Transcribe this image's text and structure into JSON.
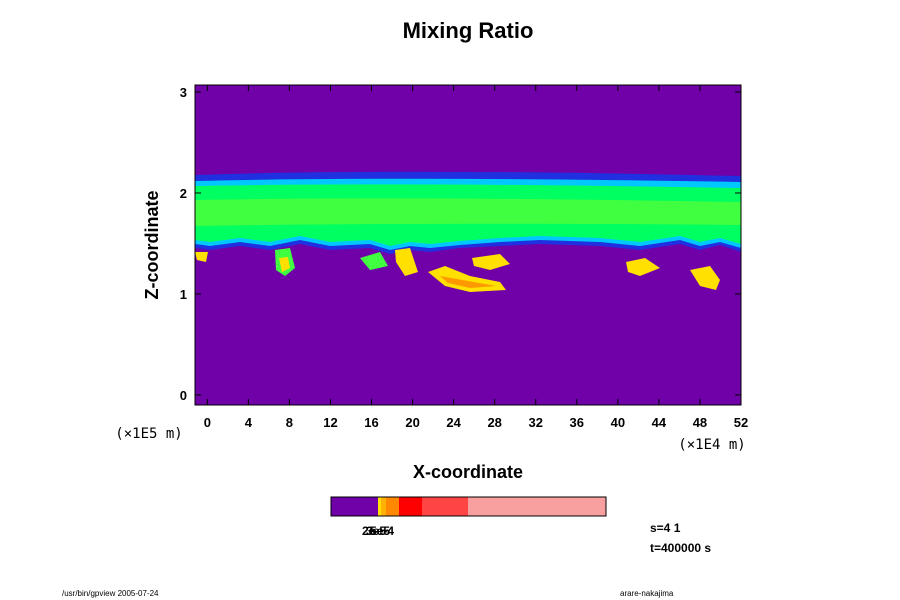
{
  "chart_data": {
    "type": "contour",
    "title": "Mixing Ratio",
    "x_label": "X-coordinate",
    "y_label": "Z-coordinate",
    "x_unit": "(×1E4 m)",
    "y_unit": "(×1E5 m)",
    "xlim": [
      -1.2,
      52
    ],
    "ylim": [
      -0.1,
      3.07
    ],
    "xticks": [
      0,
      4,
      8,
      12,
      16,
      20,
      24,
      28,
      32,
      36,
      40,
      44,
      48,
      52
    ],
    "yticks": [
      0,
      1,
      2,
      3
    ],
    "colorbar_labels": [
      "2e-5",
      "3e-5",
      "5e-4"
    ]
  },
  "annotations": {
    "step": "s=4 1",
    "time": "t=400000 s"
  },
  "footer": {
    "left": "/usr/bin/gpview 2005-07-24",
    "right": "arare-nakajima"
  }
}
